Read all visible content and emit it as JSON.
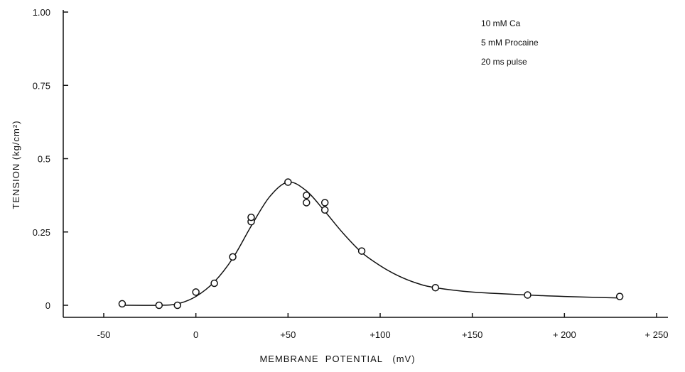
{
  "chart_data": {
    "type": "scatter",
    "title": "",
    "xlabel": "MEMBRANE  POTENTIAL   (mV)",
    "ylabel": "TENSION   (kg/cm²)",
    "xlim": [
      -50,
      250
    ],
    "ylim": [
      0,
      1.0
    ],
    "x_ticks": [
      {
        "value": -50,
        "label": "-50"
      },
      {
        "value": 0,
        "label": "0"
      },
      {
        "value": 50,
        "label": "+50"
      },
      {
        "value": 100,
        "label": "+100"
      },
      {
        "value": 150,
        "label": "+150"
      },
      {
        "value": 200,
        "label": "+ 200"
      },
      {
        "value": 250,
        "label": "+ 250"
      }
    ],
    "y_ticks": [
      {
        "value": 0,
        "label": "0"
      },
      {
        "value": 0.25,
        "label": "0.25"
      },
      {
        "value": 0.5,
        "label": "0.5"
      },
      {
        "value": 0.75,
        "label": "0.75"
      },
      {
        "value": 1.0,
        "label": "1.00"
      }
    ],
    "grid": false,
    "annotations": [
      "10 mM Ca",
      "5 mM Procaine",
      "20 ms pulse"
    ],
    "series": [
      {
        "kind": "points",
        "x": [
          -40,
          -20,
          -10,
          0,
          10,
          20,
          30,
          30,
          50,
          60,
          60,
          70,
          70,
          90,
          130,
          180,
          230
        ],
        "y": [
          0.005,
          0.0,
          0.0,
          0.045,
          0.075,
          0.165,
          0.285,
          0.3,
          0.42,
          0.375,
          0.35,
          0.35,
          0.325,
          0.185,
          0.06,
          0.035,
          0.03
        ]
      },
      {
        "kind": "fit-curve",
        "x": [
          -40,
          -20,
          -10,
          0,
          10,
          20,
          30,
          40,
          50,
          60,
          70,
          80,
          90,
          100,
          110,
          120,
          130,
          150,
          180,
          200,
          230
        ],
        "y": [
          0.0,
          0.0,
          0.005,
          0.03,
          0.08,
          0.16,
          0.27,
          0.37,
          0.42,
          0.39,
          0.32,
          0.245,
          0.18,
          0.135,
          0.1,
          0.075,
          0.06,
          0.045,
          0.035,
          0.03,
          0.025
        ]
      }
    ]
  }
}
